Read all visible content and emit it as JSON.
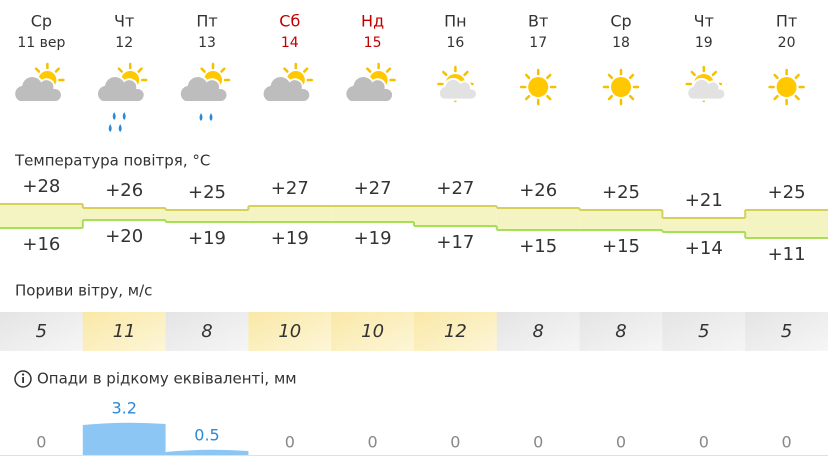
{
  "days": [
    {
      "weekday": "Ср",
      "date": "11 вер",
      "weekend": false
    },
    {
      "weekday": "Чт",
      "date": "12",
      "weekend": false
    },
    {
      "weekday": "Пт",
      "date": "13",
      "weekend": false
    },
    {
      "weekday": "Сб",
      "date": "14",
      "weekend": true
    },
    {
      "weekday": "Нд",
      "date": "15",
      "weekend": true
    },
    {
      "weekday": "Пн",
      "date": "16",
      "weekend": false
    },
    {
      "weekday": "Вт",
      "date": "17",
      "weekend": false
    },
    {
      "weekday": "Ср",
      "date": "18",
      "weekend": false
    },
    {
      "weekday": "Чт",
      "date": "19",
      "weekend": false
    },
    {
      "weekday": "Пт",
      "date": "20",
      "weekend": false
    }
  ],
  "temperature": {
    "title": "Температура повітря, °C",
    "max": {
      "values": [
        28,
        26,
        25,
        27,
        27,
        27,
        26,
        25,
        21,
        25
      ],
      "value_labels": [
        "+28",
        "+26",
        "+25",
        "+27",
        "+27",
        "+27",
        "+26",
        "+25",
        "+21",
        "+25"
      ]
    },
    "min": {
      "values": [
        16,
        20,
        19,
        19,
        19,
        17,
        15,
        15,
        14,
        11
      ],
      "value_labels": [
        "+16",
        "+20",
        "+19",
        "+19",
        "+19",
        "+17",
        "+15",
        "+15",
        "+14",
        "+11"
      ]
    }
  },
  "wind": {
    "title": "Пориви вітру, м/с",
    "values": [
      5,
      11,
      8,
      10,
      10,
      12,
      8,
      8,
      5,
      5
    ]
  },
  "precipitation": {
    "title": "Опади в рідкому еквіваленті, мм",
    "values": [
      0,
      3.2,
      0.5,
      0,
      0,
      0,
      0,
      0,
      0,
      0
    ]
  }
}
